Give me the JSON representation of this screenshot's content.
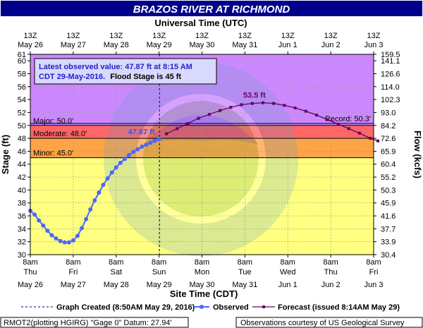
{
  "title": "BRAZOS RIVER AT RICHMOND",
  "top_axis_title": "Universal Time (UTC)",
  "top_ticks": [
    {
      "l1": "13Z",
      "l2": "May 26"
    },
    {
      "l1": "13Z",
      "l2": "May 27"
    },
    {
      "l1": "13Z",
      "l2": "May 28"
    },
    {
      "l1": "13Z",
      "l2": "May 29"
    },
    {
      "l1": "13Z",
      "l2": "May 30"
    },
    {
      "l1": "13Z",
      "l2": "May 31"
    },
    {
      "l1": "13Z",
      "l2": "Jun  1"
    },
    {
      "l1": "13Z",
      "l2": "Jun  2"
    },
    {
      "l1": "13Z",
      "l2": "Jun  3"
    }
  ],
  "bottom_axis_title": "Site Time (CDT)",
  "bottom_ticks": [
    {
      "l1": "8am",
      "l2": "Thu",
      "l3": "May 26"
    },
    {
      "l1": "8am",
      "l2": "Fri",
      "l3": "May 27"
    },
    {
      "l1": "8am",
      "l2": "Sat",
      "l3": "May 28"
    },
    {
      "l1": "8am",
      "l2": "Sun",
      "l3": "May 29"
    },
    {
      "l1": "8am",
      "l2": "Mon",
      "l3": "May 30"
    },
    {
      "l1": "8am",
      "l2": "Tue",
      "l3": "May 31"
    },
    {
      "l1": "8am",
      "l2": "Wed",
      "l3": "Jun  1"
    },
    {
      "l1": "8am",
      "l2": "Thu",
      "l3": "Jun  2"
    },
    {
      "l1": "8am",
      "l2": "Fri",
      "l3": "Jun  3"
    }
  ],
  "left_axis_title": "Stage (ft)",
  "right_axis_title": "Flow (kcfs)",
  "annotation_line1": "Latest observed value: 47.87 ft at 8:15 AM",
  "annotation_line2a": "CDT 29-May-2016.",
  "annotation_line2b": "Flood Stage is 45 ft",
  "footer_left": "RMOT2(plotting HGIRG) \"Gage 0\" Datum: 27.94'",
  "footer_right": "Observations courtesy of US Geological Survey",
  "colors": {
    "title_bar": "#00008b",
    "major": "#cc88ff",
    "moderate": "#ff6666",
    "minor": "#ffa347",
    "action": "#ffff80",
    "observed": "#4d66ff",
    "forecast": "#660066",
    "label_observed": "#3355ff",
    "label_forecast": "#660066",
    "annotation_fill": "#d9d9ff",
    "annotation_text": "#2222cc"
  },
  "chart_data": {
    "type": "line",
    "x_unit": "days after 8am CDT May 26 2016",
    "y_left": {
      "label": "Stage (ft)",
      "min": 30,
      "max": 61,
      "ticks": [
        30,
        32,
        34,
        36,
        38,
        40,
        42,
        44,
        46,
        48,
        50,
        52,
        54,
        56,
        58,
        60,
        61
      ]
    },
    "y_right": {
      "label": "Flow (kcfs)",
      "ticks": [
        {
          "stage": 30,
          "label": "30.4"
        },
        {
          "stage": 32,
          "label": "33.9"
        },
        {
          "stage": 34,
          "label": "37.7"
        },
        {
          "stage": 36,
          "label": "41.6"
        },
        {
          "stage": 38,
          "label": "45.9"
        },
        {
          "stage": 40,
          "label": "50.3"
        },
        {
          "stage": 42,
          "label": "55.2"
        },
        {
          "stage": 44,
          "label": "60.4"
        },
        {
          "stage": 46,
          "label": "65.9"
        },
        {
          "stage": 48,
          "label": "72.6"
        },
        {
          "stage": 50,
          "label": "84.2"
        },
        {
          "stage": 52,
          "label": "93.0"
        },
        {
          "stage": 54,
          "label": "102.3"
        },
        {
          "stage": 56,
          "label": "114.0"
        },
        {
          "stage": 58,
          "label": "126.6"
        },
        {
          "stage": 60,
          "label": "141.1"
        },
        {
          "stage": 61,
          "label": "159.5"
        }
      ]
    },
    "flood_categories": [
      {
        "name": "major",
        "label": "Major: 50.0'",
        "from": 50,
        "to": 61
      },
      {
        "name": "moderate",
        "label": "Moderate: 48.0'",
        "from": 48,
        "to": 50
      },
      {
        "name": "minor",
        "label": "Minor: 45.0'",
        "from": 45,
        "to": 48
      },
      {
        "name": "action",
        "label": "",
        "from": 30,
        "to": 45
      }
    ],
    "record_label": "Record: 50.3'",
    "record_stage": 50.3,
    "graph_created_x": 3.01,
    "observed_label": "47.87 ft",
    "forecast_peak_label": "53.5 ft",
    "series": [
      {
        "name": "Observed",
        "values": [
          [
            0.0,
            36.8
          ],
          [
            0.1,
            36.2
          ],
          [
            0.2,
            35.3
          ],
          [
            0.3,
            34.5
          ],
          [
            0.4,
            33.7
          ],
          [
            0.5,
            33.0
          ],
          [
            0.6,
            32.5
          ],
          [
            0.7,
            32.1
          ],
          [
            0.8,
            31.9
          ],
          [
            0.9,
            31.9
          ],
          [
            1.0,
            32.2
          ],
          [
            1.1,
            32.9
          ],
          [
            1.2,
            34.1
          ],
          [
            1.3,
            35.5
          ],
          [
            1.4,
            37.0
          ],
          [
            1.5,
            38.4
          ],
          [
            1.6,
            39.6
          ],
          [
            1.7,
            40.8
          ],
          [
            1.8,
            41.8
          ],
          [
            1.9,
            42.7
          ],
          [
            2.0,
            43.5
          ],
          [
            2.1,
            44.2
          ],
          [
            2.2,
            44.8
          ],
          [
            2.3,
            45.4
          ],
          [
            2.4,
            45.9
          ],
          [
            2.5,
            46.3
          ],
          [
            2.6,
            46.7
          ],
          [
            2.7,
            47.0
          ],
          [
            2.8,
            47.3
          ],
          [
            2.9,
            47.6
          ],
          [
            3.0,
            47.87
          ]
        ]
      },
      {
        "name": "Forecast (issued 8:14AM May 29)",
        "values": [
          [
            3.17,
            48.7
          ],
          [
            3.42,
            49.5
          ],
          [
            3.67,
            50.3
          ],
          [
            3.92,
            51.1
          ],
          [
            4.17,
            51.7
          ],
          [
            4.42,
            52.3
          ],
          [
            4.67,
            52.8
          ],
          [
            4.92,
            53.2
          ],
          [
            5.17,
            53.4
          ],
          [
            5.42,
            53.5
          ],
          [
            5.67,
            53.4
          ],
          [
            5.92,
            53.1
          ],
          [
            6.17,
            52.7
          ],
          [
            6.42,
            52.2
          ],
          [
            6.67,
            51.6
          ],
          [
            6.92,
            50.9
          ],
          [
            7.17,
            50.2
          ],
          [
            7.42,
            49.5
          ],
          [
            7.67,
            48.8
          ],
          [
            7.92,
            48.0
          ],
          [
            8.1,
            47.6
          ]
        ]
      }
    ]
  },
  "legend": {
    "graph_created": "Graph Created (8:50AM May 29, 2016)",
    "observed": "Observed",
    "forecast": "Forecast (issued 8:14AM May 29)"
  }
}
